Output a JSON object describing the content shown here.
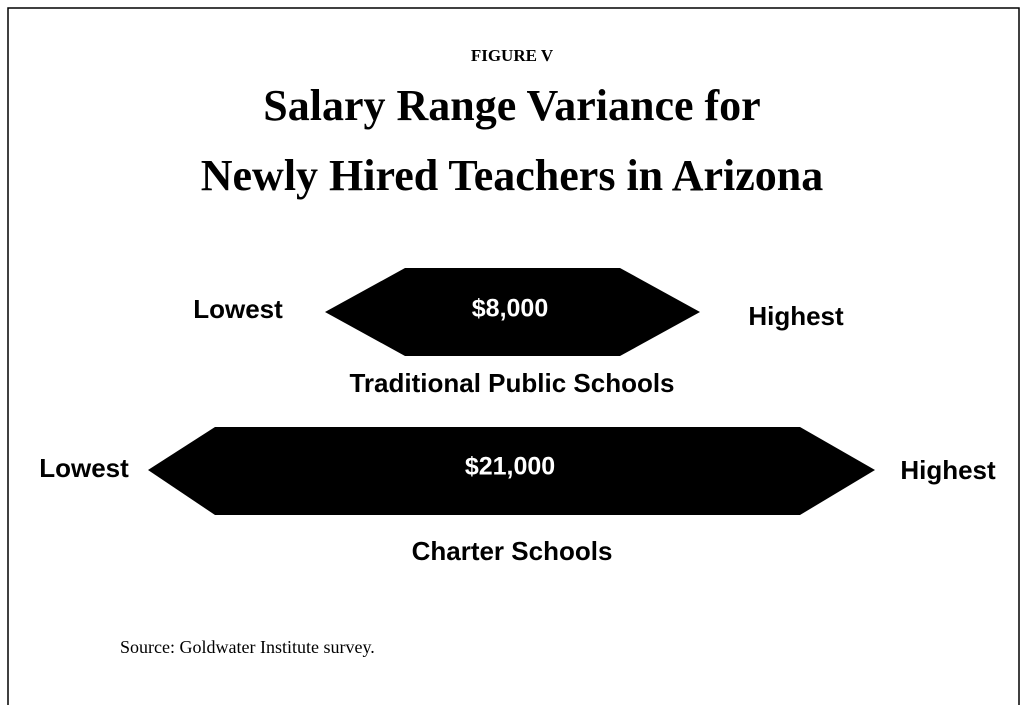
{
  "figure_label": "FIGURE V",
  "title": [
    "Salary Range Variance for",
    "Newly Hired Teachers in Arizona"
  ],
  "rows": [
    {
      "low": "Lowest",
      "range": "$8,000",
      "high": "Highest",
      "name": "Traditional Public Schools"
    },
    {
      "low": "Lowest",
      "range": "$21,000",
      "high": "Highest",
      "name": "Charter Schools"
    }
  ],
  "source": "Source: Goldwater Institute survey."
}
